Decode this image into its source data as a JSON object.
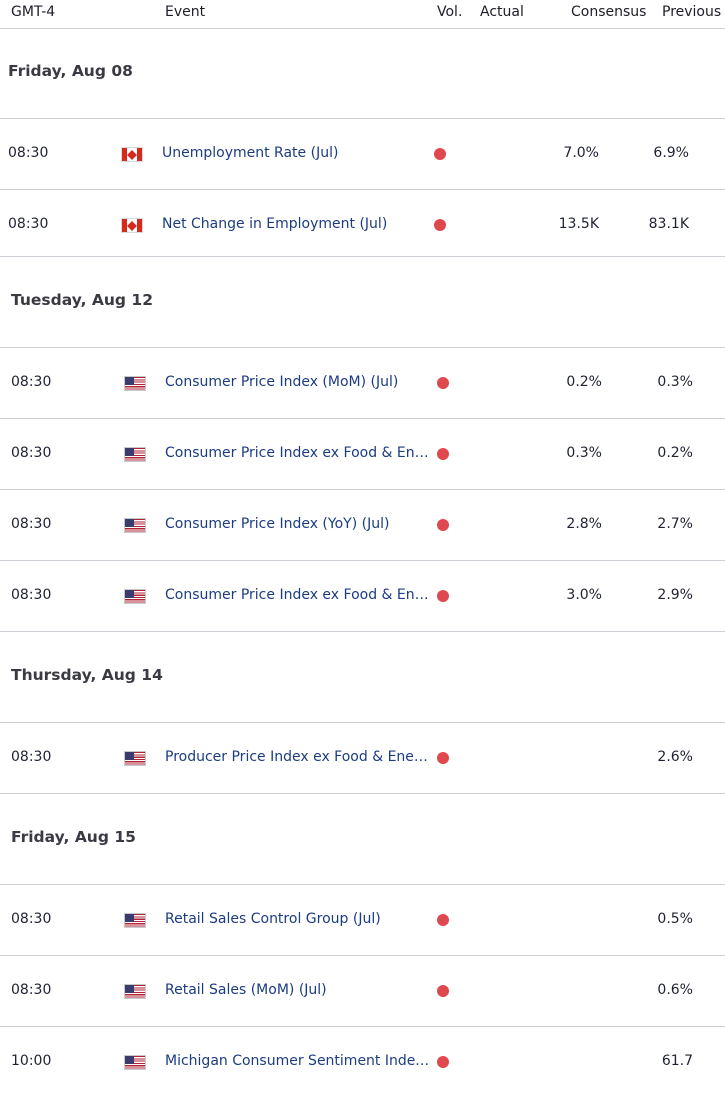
{
  "header": {
    "timezone": "GMT-4",
    "event": "Event",
    "vol": "Vol.",
    "actual": "Actual",
    "consensus": "Consensus",
    "previous": "Previous"
  },
  "days": [
    {
      "title": "Friday, Aug 08",
      "events": [
        {
          "time": "08:30",
          "flag": "canada-flag-icon",
          "event": "Unemployment Rate (Jul)",
          "volatility": "high",
          "actual": "",
          "consensus": "7.0%",
          "previous": "6.9%"
        },
        {
          "time": "08:30",
          "flag": "canada-flag-icon",
          "event": "Net Change in Employment (Jul)",
          "volatility": "high",
          "actual": "",
          "consensus": "13.5K",
          "previous": "83.1K"
        }
      ]
    },
    {
      "title": "Tuesday, Aug 12",
      "events": [
        {
          "time": "08:30",
          "flag": "us-flag-icon",
          "event": "Consumer Price Index (MoM) (Jul)",
          "volatility": "high",
          "actual": "",
          "consensus": "0.2%",
          "previous": "0.3%"
        },
        {
          "time": "08:30",
          "flag": "us-flag-icon",
          "event": "Consumer Price Index ex Food & Energy (MoM) (Jul)",
          "volatility": "high",
          "actual": "",
          "consensus": "0.3%",
          "previous": "0.2%"
        },
        {
          "time": "08:30",
          "flag": "us-flag-icon",
          "event": "Consumer Price Index (YoY) (Jul)",
          "volatility": "high",
          "actual": "",
          "consensus": "2.8%",
          "previous": "2.7%"
        },
        {
          "time": "08:30",
          "flag": "us-flag-icon",
          "event": "Consumer Price Index ex Food & Energy (YoY) (Jul)",
          "volatility": "high",
          "actual": "",
          "consensus": "3.0%",
          "previous": "2.9%"
        }
      ]
    },
    {
      "title": "Thursday, Aug 14",
      "events": [
        {
          "time": "08:30",
          "flag": "us-flag-icon",
          "event": "Producer Price Index ex Food & Energy (YoY) (Jul)",
          "volatility": "high",
          "actual": "",
          "consensus": "",
          "previous": "2.6%"
        }
      ]
    },
    {
      "title": "Friday, Aug 15",
      "events": [
        {
          "time": "08:30",
          "flag": "us-flag-icon",
          "event": "Retail Sales Control Group (Jul)",
          "volatility": "high",
          "actual": "",
          "consensus": "",
          "previous": "0.5%"
        },
        {
          "time": "08:30",
          "flag": "us-flag-icon",
          "event": "Retail Sales (MoM) (Jul)",
          "volatility": "high",
          "actual": "",
          "consensus": "",
          "previous": "0.6%"
        },
        {
          "time": "10:00",
          "flag": "us-flag-icon",
          "event": "Michigan Consumer Sentiment Index (Aug) PREL",
          "volatility": "high",
          "actual": "",
          "consensus": "",
          "previous": "61.7"
        }
      ]
    }
  ],
  "colors": {
    "volatility_dot": "#e0484f",
    "event_link": "#1c3c82",
    "divider": "#cfcfd6"
  }
}
